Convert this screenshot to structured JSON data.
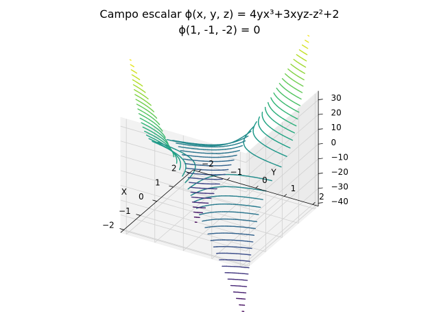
{
  "chart_data": {
    "type": "contour3d",
    "title": "Campo escalar ϕ(x, y, z) = 4yx³+3xyz-z²+2",
    "subtitle": "ϕ(1, -1, -2) = 0",
    "xlabel": "X",
    "ylabel": "Y",
    "zlabel": "",
    "xlim": [
      -2.2,
      2.2
    ],
    "ylim": [
      -2.2,
      2.2
    ],
    "zlim": [
      -42,
      36
    ],
    "x_ticks": [
      -2,
      -1,
      0,
      1,
      2
    ],
    "y_ticks": [
      -2,
      -1,
      0,
      1,
      2
    ],
    "z_ticks": [
      30,
      20,
      10,
      0,
      -10,
      -20,
      -30,
      -40
    ],
    "surface": "z = 4*y*x^3 + 3*x*y",
    "x_range": [
      -2,
      2
    ],
    "y_range": [
      -2,
      2
    ],
    "contour_levels": 40,
    "colormap": "viridis",
    "grid": true
  }
}
